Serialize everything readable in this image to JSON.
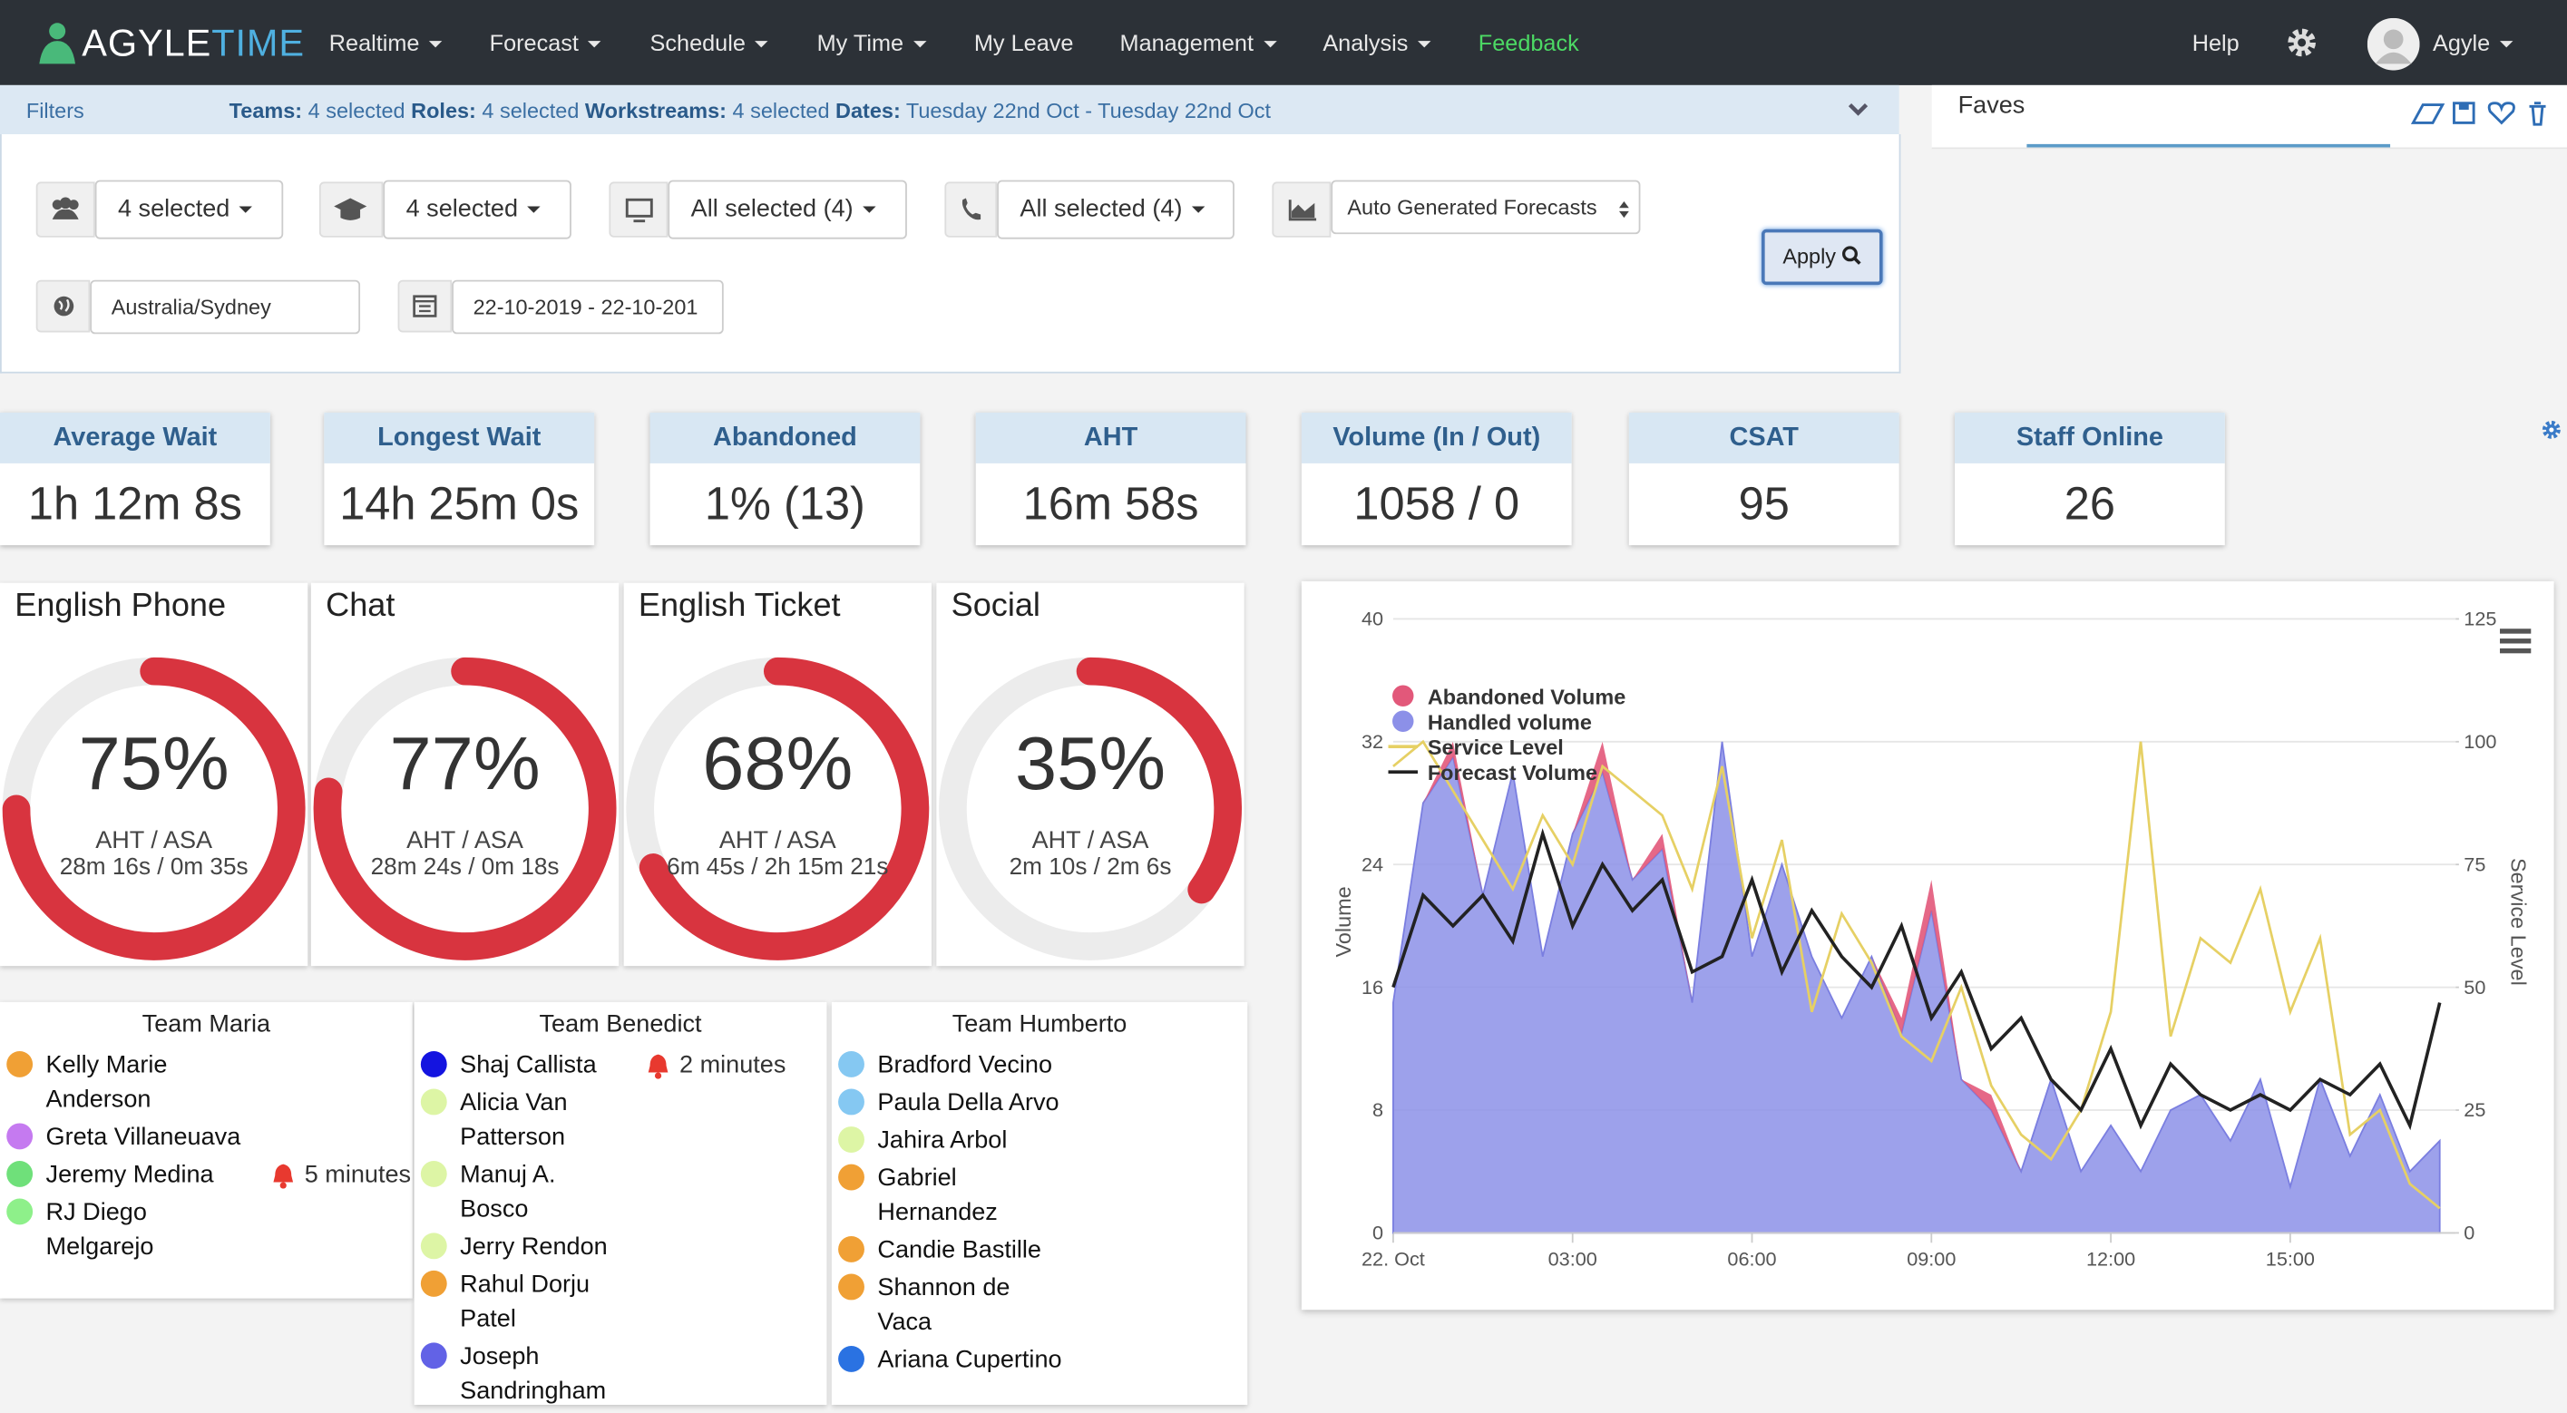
{
  "nav": {
    "brand_a": "AGYLE",
    "brand_b": "TIME",
    "items": [
      {
        "label": "Realtime",
        "caret": true
      },
      {
        "label": "Forecast",
        "caret": true
      },
      {
        "label": "Schedule",
        "caret": true
      },
      {
        "label": "My Time",
        "caret": true
      },
      {
        "label": "My Leave",
        "caret": false
      },
      {
        "label": "Management",
        "caret": true
      },
      {
        "label": "Analysis",
        "caret": true
      },
      {
        "label": "Feedback",
        "caret": false
      }
    ],
    "help": "Help",
    "user": "Agyle"
  },
  "filters": {
    "title": "Filters",
    "summary": [
      {
        "label": "Teams:",
        "value": "4 selected"
      },
      {
        "label": "Roles:",
        "value": "4 selected"
      },
      {
        "label": "Workstreams:",
        "value": "4 selected"
      },
      {
        "label": "Dates:",
        "value": "Tuesday 22nd Oct - Tuesday 22nd Oct"
      }
    ]
  },
  "faves": {
    "title": "Faves"
  },
  "controls": {
    "teams": "4 selected",
    "roles": "4 selected",
    "workstreams": "All selected (4)",
    "channels": "All selected (4)",
    "forecast": "Auto Generated Forecasts",
    "apply": "Apply",
    "timezone": "Australia/Sydney",
    "dates": "22-10-2019 - 22-10-201"
  },
  "kpis": [
    {
      "title": "Average Wait",
      "value": "1h 12m 8s"
    },
    {
      "title": "Longest Wait",
      "value": "14h 25m 0s"
    },
    {
      "title": "Abandoned",
      "value": "1% (13)"
    },
    {
      "title": "AHT",
      "value": "16m 58s"
    },
    {
      "title": "Volume (In / Out)",
      "value": "1058 / 0"
    },
    {
      "title": "CSAT",
      "value": "95"
    },
    {
      "title": "Staff Online",
      "value": "26"
    }
  ],
  "gauges": [
    {
      "name": "English Phone",
      "value": 75,
      "value_label": "75%",
      "caption": "AHT / ASA",
      "detail": "28m 16s / 0m 35s"
    },
    {
      "name": "Chat",
      "value": 77,
      "value_label": "77%",
      "caption": "AHT / ASA",
      "detail": "28m 24s / 0m 18s"
    },
    {
      "name": "English Ticket",
      "value": 68,
      "value_label": "68%",
      "caption": "AHT / ASA",
      "detail": "6m 45s / 2h 15m 21s"
    },
    {
      "name": "Social",
      "value": 35,
      "value_label": "35%",
      "caption": "AHT / ASA",
      "detail": "2m 10s / 2m 6s"
    }
  ],
  "teams": [
    {
      "name": "Team Maria",
      "members": [
        {
          "name": "Kelly Marie Anderson",
          "color": "#f0a035"
        },
        {
          "name": "Greta Villaneuava",
          "color": "#c57af0"
        },
        {
          "name": "Jeremy Medina",
          "color": "#6fe07a",
          "alert": "5 minutes"
        },
        {
          "name": "RJ Diego Melgarejo",
          "color": "#8ef08a"
        }
      ]
    },
    {
      "name": "Team Benedict",
      "members": [
        {
          "name": "Shaj Callista",
          "color": "#1414e0",
          "alert": "2 minutes"
        },
        {
          "name": "Alicia Van Patterson",
          "color": "#ddf5a5"
        },
        {
          "name": "Manuj A. Bosco",
          "color": "#ddf5a5"
        },
        {
          "name": "Jerry Rendon",
          "color": "#ddf5a5"
        },
        {
          "name": "Rahul Dorju Patel",
          "color": "#f0a035"
        },
        {
          "name": "Joseph Sandringham",
          "color": "#6262e6"
        }
      ]
    },
    {
      "name": "Team Humberto",
      "members": [
        {
          "name": "Bradford Vecino",
          "color": "#85c8f2"
        },
        {
          "name": "Paula Della Arvo",
          "color": "#85c8f2"
        },
        {
          "name": "Jahira Arbol",
          "color": "#ddf5a5"
        },
        {
          "name": "Gabriel Hernandez",
          "color": "#f0a035"
        },
        {
          "name": "Candie Bastille",
          "color": "#f0a035"
        },
        {
          "name": "Shannon de Vaca",
          "color": "#f0a035"
        },
        {
          "name": "Ariana Cupertino",
          "color": "#2a72e2"
        }
      ]
    }
  ],
  "chart_data": {
    "type": "area",
    "categories": [
      "00:00",
      "00:30",
      "01:00",
      "01:30",
      "02:00",
      "02:30",
      "03:00",
      "03:30",
      "04:00",
      "04:30",
      "05:00",
      "05:30",
      "06:00",
      "06:30",
      "07:00",
      "07:30",
      "08:00",
      "08:30",
      "09:00",
      "09:30",
      "10:00",
      "10:30",
      "11:00",
      "11:30",
      "12:00",
      "12:30",
      "13:00",
      "13:30",
      "14:00",
      "14:30",
      "15:00",
      "15:30",
      "16:00",
      "16:30",
      "17:00",
      "17:30"
    ],
    "xticks": [
      {
        "value": "00:00",
        "label": "22. Oct"
      },
      "03:00",
      "06:00",
      "09:00",
      "12:00",
      "15:00"
    ],
    "ylabel": "Volume",
    "y2label": "Service Level",
    "ylim": [
      0,
      40
    ],
    "yticks": [
      0,
      8,
      16,
      24,
      32,
      40
    ],
    "y2lim": [
      0,
      125
    ],
    "y2ticks": [
      0,
      25,
      50,
      75,
      100,
      125
    ],
    "grid": true,
    "series": [
      {
        "name": "Abandoned Volume",
        "color": "#e2587a",
        "kind": "stacked-area",
        "values": [
          0,
          0,
          1,
          0,
          0,
          0,
          0,
          2,
          0,
          1,
          0,
          0,
          0,
          0,
          0,
          0,
          0,
          1,
          2,
          0,
          1,
          0,
          0,
          0,
          0,
          0,
          0,
          0,
          0,
          0,
          0,
          0,
          0,
          0,
          0,
          0
        ]
      },
      {
        "name": "Handled volume",
        "color": "#8c90e8",
        "kind": "area",
        "values": [
          15,
          28,
          31,
          22,
          30,
          18,
          26,
          30,
          23,
          25,
          15,
          32,
          18,
          24,
          18,
          14,
          18,
          13,
          21,
          10,
          8,
          4,
          10,
          4,
          7,
          4,
          8,
          9,
          6,
          10,
          3,
          10,
          5,
          9,
          4,
          6
        ]
      },
      {
        "name": "Service Level",
        "color": "#e6d064",
        "kind": "line",
        "axis": "y2",
        "values": [
          95,
          100,
          90,
          80,
          70,
          85,
          75,
          95,
          90,
          85,
          70,
          95,
          60,
          80,
          45,
          65,
          55,
          40,
          35,
          50,
          30,
          20,
          15,
          25,
          45,
          100,
          40,
          60,
          55,
          70,
          45,
          60,
          20,
          25,
          10,
          5
        ]
      },
      {
        "name": "Forecast Volume",
        "color": "#222222",
        "kind": "line",
        "values": [
          16,
          22,
          20,
          22,
          19,
          26,
          20,
          24,
          21,
          23,
          17,
          18,
          23,
          17,
          21,
          18,
          16,
          20,
          14,
          17,
          12,
          14,
          10,
          8,
          12,
          7,
          11,
          9,
          8,
          9,
          8,
          10,
          9,
          11,
          7,
          15
        ]
      }
    ]
  }
}
